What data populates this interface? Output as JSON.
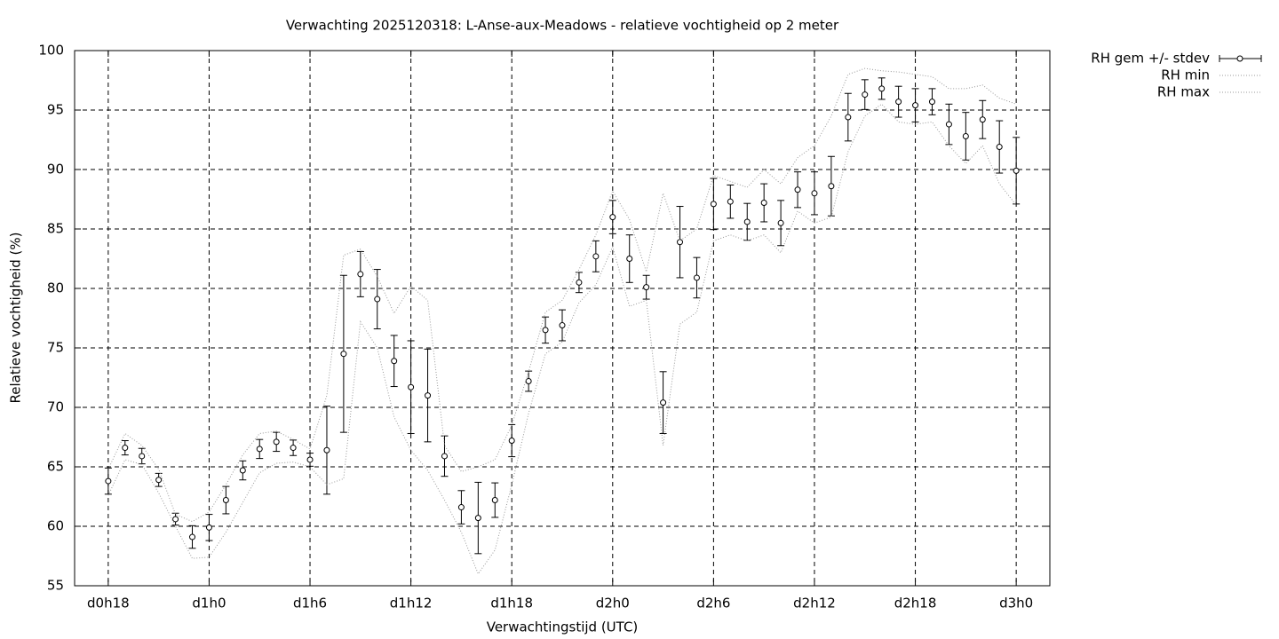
{
  "chart_data": {
    "type": "errorbar",
    "title": "Verwachting 2025120318: L-Anse-aux-Meadows - relatieve vochtigheid op 2 meter",
    "xlabel": "Verwachtingstijd (UTC)",
    "ylabel": "Relatieve vochtigheid (%)",
    "x": [
      18,
      19,
      20,
      21,
      22,
      23,
      24,
      25,
      26,
      27,
      28,
      29,
      30,
      31,
      32,
      33,
      34,
      35,
      36,
      37,
      38,
      39,
      40,
      41,
      42,
      43,
      44,
      45,
      46,
      47,
      48,
      49,
      50,
      51,
      52,
      53,
      54,
      55,
      56,
      57,
      58,
      59,
      60,
      61,
      62,
      63,
      64,
      65,
      66,
      67,
      68,
      69,
      70,
      71,
      72
    ],
    "xlim": [
      16,
      74
    ],
    "xticks": [
      {
        "value": 18,
        "label": "d0h18"
      },
      {
        "value": 24,
        "label": "d1h0"
      },
      {
        "value": 30,
        "label": "d1h6"
      },
      {
        "value": 36,
        "label": "d1h12"
      },
      {
        "value": 42,
        "label": "d1h18"
      },
      {
        "value": 48,
        "label": "d2h0"
      },
      {
        "value": 54,
        "label": "d2h6"
      },
      {
        "value": 60,
        "label": "d2h12"
      },
      {
        "value": 66,
        "label": "d2h18"
      },
      {
        "value": 72,
        "label": "d3h0"
      }
    ],
    "ylim": [
      55,
      100
    ],
    "yticks": [
      55,
      60,
      65,
      70,
      75,
      80,
      85,
      90,
      95,
      100
    ],
    "grid": true,
    "legend": "outside-top-right",
    "series": [
      {
        "name": "RH gem +/- stdev",
        "color": "#000000",
        "values": [
          63.8,
          66.6,
          65.9,
          63.9,
          60.6,
          59.1,
          59.9,
          62.2,
          64.7,
          66.5,
          67.1,
          66.6,
          65.6,
          66.4,
          74.5,
          81.2,
          79.1,
          73.9,
          71.7,
          71.0,
          65.9,
          61.6,
          60.7,
          62.2,
          67.2,
          72.2,
          76.5,
          76.9,
          80.5,
          82.7,
          86.0,
          82.5,
          80.1,
          70.4,
          83.9,
          80.9,
          87.1,
          87.3,
          85.6,
          87.2,
          85.5,
          88.3,
          88.0,
          88.6,
          94.4,
          96.3,
          96.8,
          95.7,
          95.4,
          95.7,
          93.8,
          92.8,
          94.2,
          91.9,
          89.9
        ],
        "stdev": [
          1.1,
          0.6,
          0.65,
          0.55,
          0.5,
          0.95,
          1.1,
          1.15,
          0.8,
          0.8,
          0.8,
          0.65,
          0.55,
          3.7,
          6.6,
          1.9,
          2.5,
          2.15,
          3.9,
          3.9,
          1.7,
          1.4,
          3.0,
          1.45,
          1.35,
          0.85,
          1.1,
          1.3,
          0.85,
          1.3,
          1.4,
          2.0,
          1.0,
          2.6,
          3.0,
          1.7,
          2.15,
          1.4,
          1.55,
          1.6,
          1.9,
          1.5,
          1.8,
          2.5,
          2.0,
          1.25,
          0.9,
          1.3,
          1.4,
          1.1,
          1.7,
          2.0,
          1.6,
          2.2,
          2.8
        ]
      },
      {
        "name": "RH min",
        "color": "#999999",
        "dash": "dotted",
        "values": [
          62.6,
          65.6,
          65.2,
          62.8,
          60.0,
          57.3,
          57.4,
          59.5,
          62.0,
          64.5,
          65.3,
          65.4,
          65.0,
          63.5,
          64.0,
          77.2,
          75.0,
          69.2,
          66.4,
          64.7,
          62.2,
          59.5,
          56.0,
          58.0,
          63.5,
          69.5,
          74.5,
          75.5,
          78.8,
          80.3,
          83.5,
          78.5,
          79.0,
          66.8,
          77.0,
          78.0,
          84.0,
          84.5,
          84.0,
          84.5,
          83.0,
          86.5,
          85.5,
          86.0,
          91.5,
          94.5,
          95.5,
          94.0,
          93.8,
          94.0,
          92.0,
          90.5,
          92.0,
          88.8,
          87.0
        ]
      },
      {
        "name": "RH max",
        "color": "#999999",
        "dash": "dotted",
        "values": [
          64.8,
          67.8,
          66.8,
          64.8,
          61.0,
          60.4,
          61.2,
          63.5,
          66.0,
          67.8,
          68.0,
          67.3,
          66.5,
          71.0,
          82.8,
          83.3,
          81.0,
          77.9,
          80.2,
          79.0,
          66.8,
          64.6,
          65.0,
          65.6,
          68.5,
          73.0,
          78.0,
          79.0,
          81.6,
          84.5,
          88.2,
          85.8,
          81.4,
          88.0,
          84.0,
          85.0,
          89.5,
          89.0,
          88.5,
          90.0,
          88.8,
          91.0,
          92.0,
          94.5,
          98.0,
          98.5,
          98.3,
          98.2,
          98.0,
          97.8,
          96.8,
          96.8,
          97.1,
          96.0,
          95.5
        ]
      }
    ]
  }
}
